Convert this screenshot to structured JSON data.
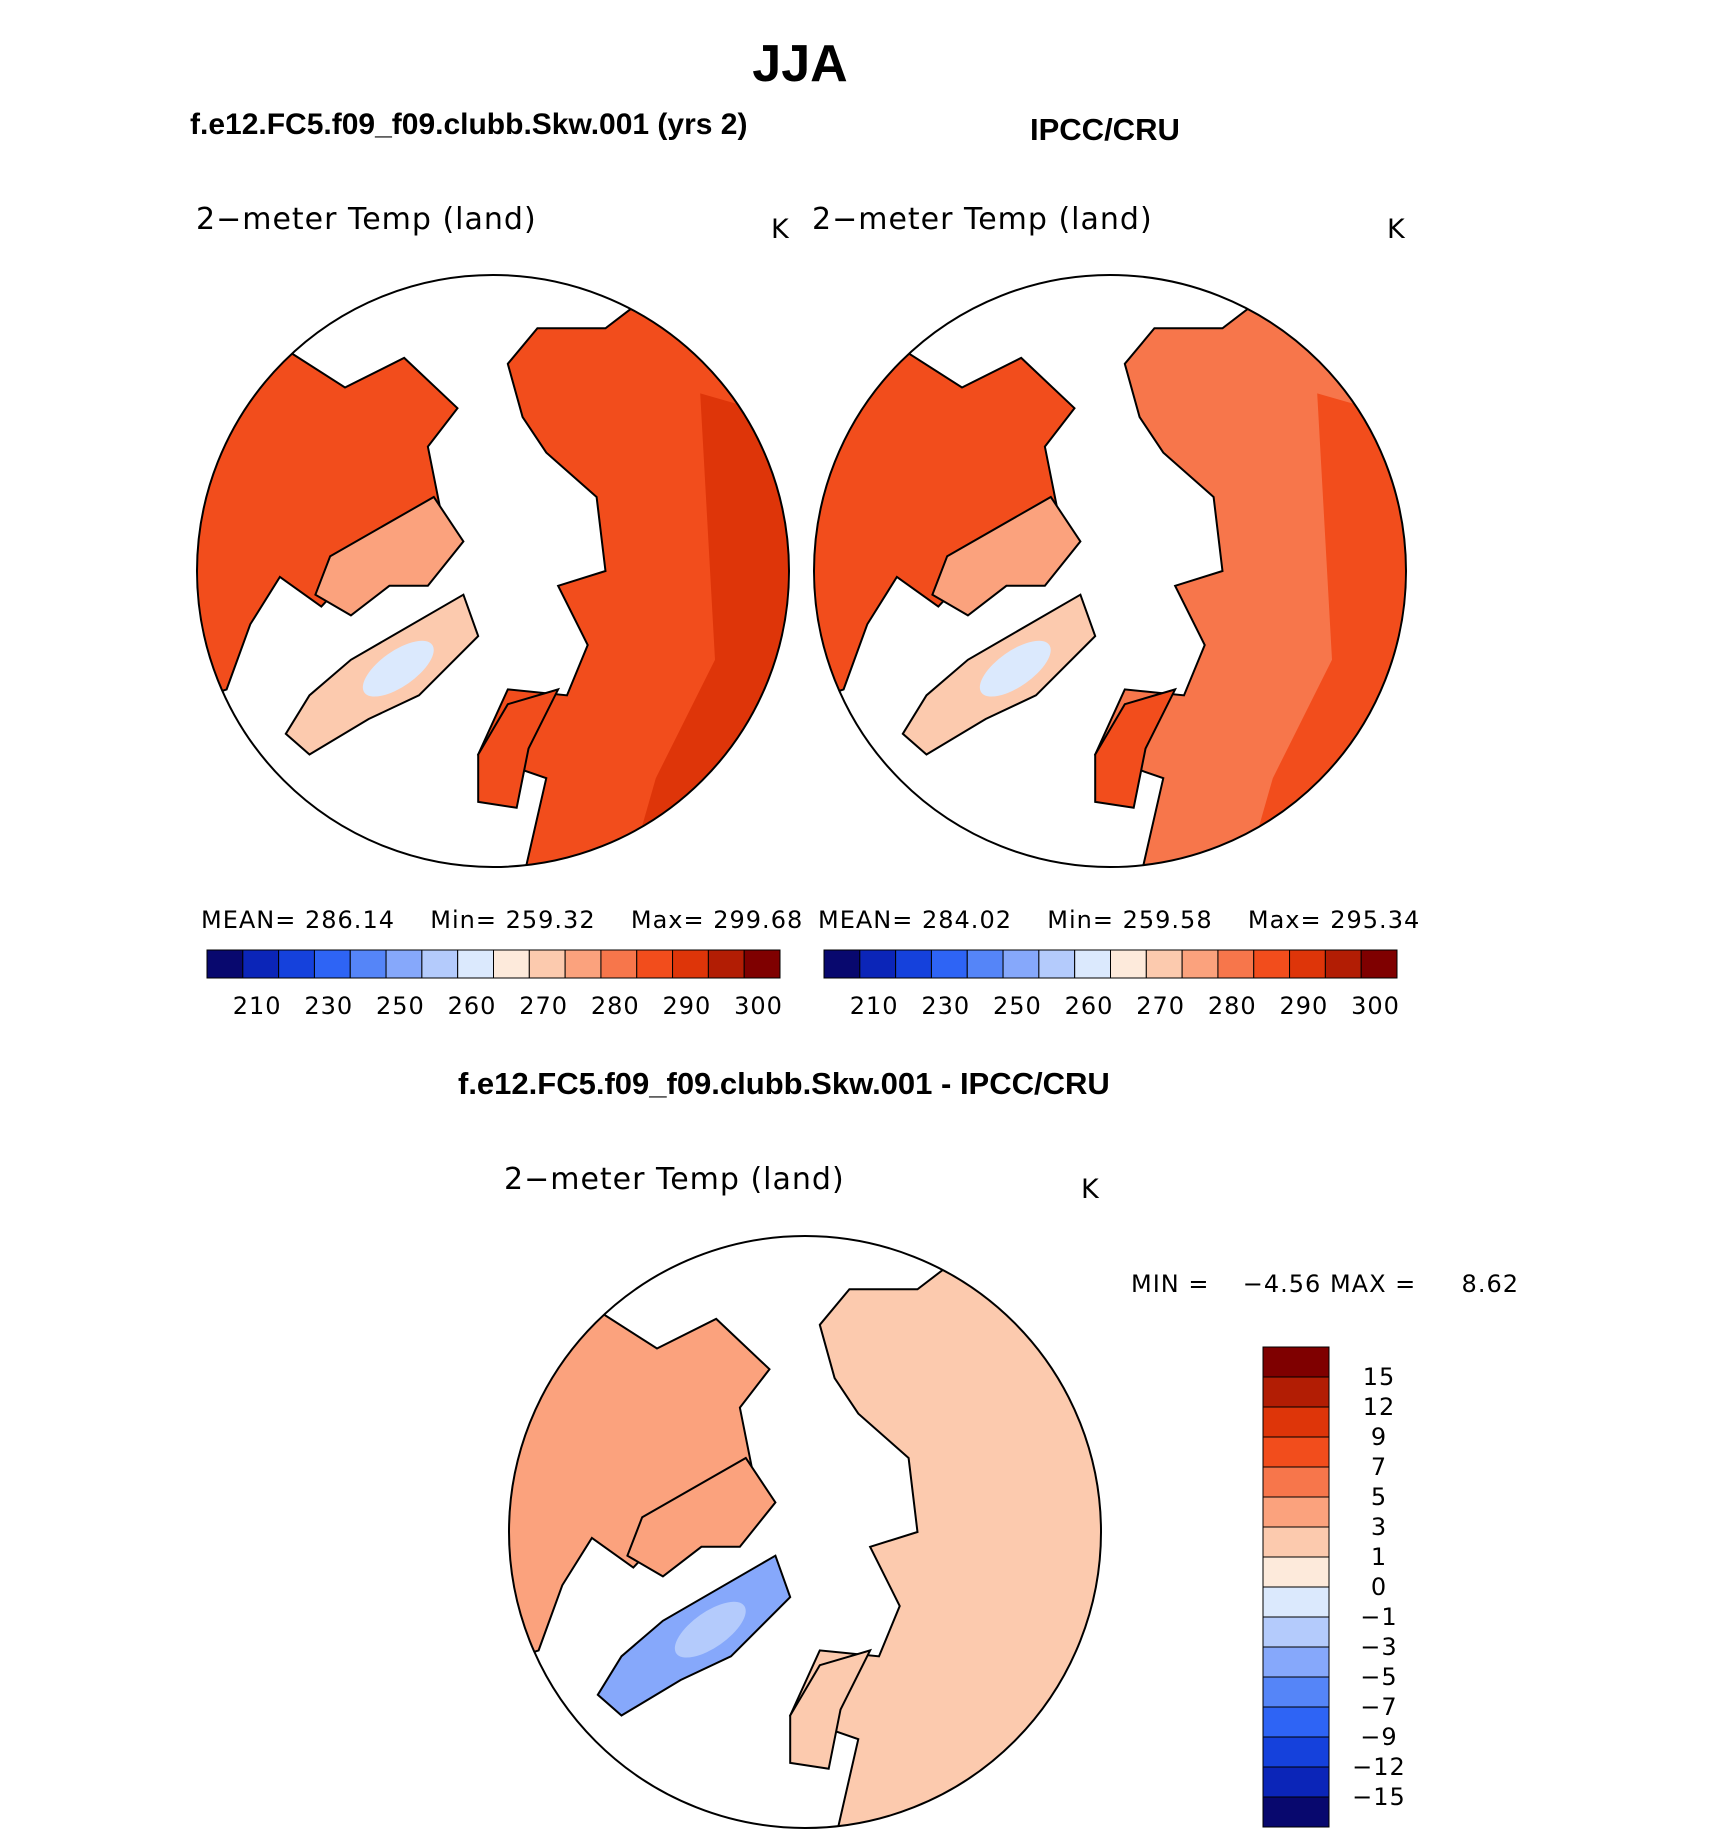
{
  "header": {
    "title": "JJA",
    "left_panel_title": "f.e12.FC5.f09_f09.clubb.Skw.001 (yrs 2)",
    "right_panel_title": "IPCC/CRU",
    "diff_panel_title": "f.e12.FC5.f09_f09.clubb.Skw.001 - IPCC/CRU"
  },
  "colors": {
    "land_outline": "#000000",
    "ocean_mask": "#ffffff"
  },
  "chart_data": [
    {
      "type": "heatmap",
      "projection": "north polar stereographic",
      "title": "2−meter Temp (land)",
      "units": "K",
      "stats": {
        "mean_label": "MEAN=",
        "mean": "286.14",
        "min_label": "Min=",
        "min": "259.32",
        "max_label": "Max=",
        "max": "299.68"
      },
      "colorbar": {
        "orientation": "horizontal",
        "colors": [
          "#08086e",
          "#0b25b8",
          "#1541dc",
          "#2e64f5",
          "#5585f8",
          "#86a8fb",
          "#b4cbfc",
          "#dbe9fd",
          "#fdeadb",
          "#fccaae",
          "#fba27d",
          "#f7764b",
          "#f24d1c",
          "#de3509",
          "#b21d04",
          "#7f0000"
        ],
        "tick_labels": [
          "210",
          "230",
          "250",
          "260",
          "270",
          "280",
          "290",
          "300"
        ]
      }
    },
    {
      "type": "heatmap",
      "projection": "north polar stereographic",
      "title": "2−meter Temp (land)",
      "units": "K",
      "stats": {
        "mean_label": "MEAN=",
        "mean": "284.02",
        "min_label": "Min=",
        "min": "259.58",
        "max_label": "Max=",
        "max": "295.34"
      },
      "colorbar": {
        "orientation": "horizontal",
        "colors": [
          "#08086e",
          "#0b25b8",
          "#1541dc",
          "#2e64f5",
          "#5585f8",
          "#86a8fb",
          "#b4cbfc",
          "#dbe9fd",
          "#fdeadb",
          "#fccaae",
          "#fba27d",
          "#f7764b",
          "#f24d1c",
          "#de3509",
          "#b21d04",
          "#7f0000"
        ],
        "tick_labels": [
          "210",
          "230",
          "250",
          "260",
          "270",
          "280",
          "290",
          "300"
        ]
      }
    },
    {
      "type": "heatmap",
      "projection": "north polar stereographic",
      "title": "2−meter Temp (land)",
      "units": "K",
      "stats": {
        "min_label": "MIN =",
        "min": "−4.56",
        "max_label": "MAX =",
        "max": "8.62"
      },
      "colorbar": {
        "orientation": "vertical",
        "colors": [
          "#7f0000",
          "#b21d04",
          "#de3509",
          "#f24d1c",
          "#f7764b",
          "#fba27d",
          "#fccaae",
          "#fdeadb",
          "#dbe9fd",
          "#b4cbfc",
          "#86a8fb",
          "#5585f8",
          "#2e64f5",
          "#1541dc",
          "#0b25b8",
          "#08086e"
        ],
        "tick_labels": [
          "15",
          "12",
          "9",
          "7",
          "5",
          "3",
          "1",
          "0",
          "−1",
          "−3",
          "−5",
          "−7",
          "−9",
          "−12",
          "−15"
        ]
      }
    }
  ]
}
